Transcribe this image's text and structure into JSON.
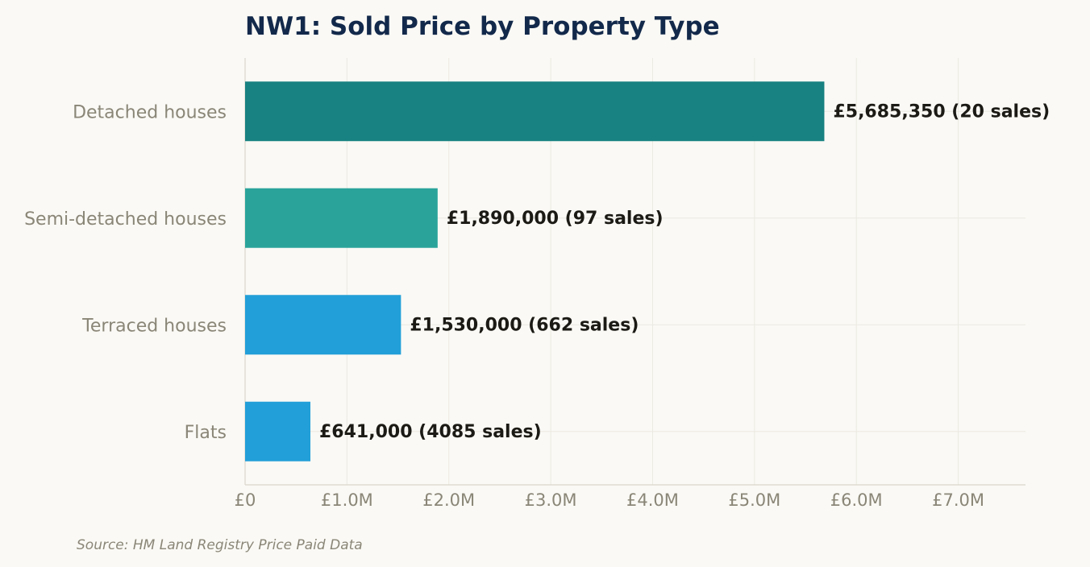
{
  "chart_data": {
    "type": "bar",
    "orientation": "horizontal",
    "title": "NW1: Sold Price by Property Type",
    "source": "Source: HM Land Registry Price Paid Data",
    "categories": [
      "Detached houses",
      "Semi-detached houses",
      "Terraced houses",
      "Flats"
    ],
    "values": [
      5685350,
      1890000,
      1530000,
      641000
    ],
    "value_labels": [
      "£5,685,350  (20 sales)",
      "£1,890,000  (97 sales)",
      "£1,530,000  (662 sales)",
      "£641,000  (4085 sales)"
    ],
    "sales": [
      20,
      97,
      662,
      4085
    ],
    "colors": [
      "#188181",
      "#2aa49b",
      "#229fd8",
      "#229fd8"
    ],
    "xlim": [
      0,
      7660000
    ],
    "xticks": [
      0,
      1000000,
      2000000,
      3000000,
      4000000,
      5000000,
      6000000,
      7000000
    ],
    "xtick_labels": [
      "£0",
      "£1.0M",
      "£2.0M",
      "£3.0M",
      "£4.0M",
      "£5.0M",
      "£6.0M",
      "£7.0M"
    ],
    "xlabel": "",
    "ylabel": "",
    "grid": true
  }
}
